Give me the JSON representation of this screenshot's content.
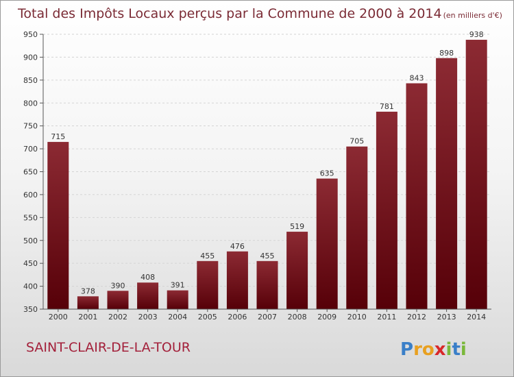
{
  "chart_data": {
    "type": "bar",
    "title": "Total des Impôts Locaux perçus par la Commune de 2000 à 2014",
    "unit": "(en milliers d'€)",
    "categories": [
      "2000",
      "2001",
      "2002",
      "2003",
      "2004",
      "2005",
      "2006",
      "2007",
      "2008",
      "2009",
      "2010",
      "2011",
      "2012",
      "2013",
      "2014"
    ],
    "values": [
      715,
      378,
      390,
      408,
      391,
      455,
      476,
      455,
      519,
      635,
      705,
      781,
      843,
      898,
      938
    ],
    "ylim": [
      350,
      950
    ],
    "yticks": [
      350,
      400,
      450,
      500,
      550,
      600,
      650,
      700,
      750,
      800,
      850,
      900,
      950
    ],
    "xlabel": "",
    "ylabel": "",
    "grid": true,
    "bar_color": "#7a1e26"
  },
  "commune": "SAINT-CLAIR-DE-LA-TOUR",
  "logo": {
    "text": "Proxiti",
    "letters": [
      {
        "ch": "P",
        "color": "#3a7fc8"
      },
      {
        "ch": "r",
        "color": "#e8a020"
      },
      {
        "ch": "o",
        "color": "#e8a020"
      },
      {
        "ch": "x",
        "color": "#d8282a"
      },
      {
        "ch": "i",
        "color": "#7ab83a"
      },
      {
        "ch": "t",
        "color": "#3a7fc8"
      },
      {
        "ch": "i",
        "color": "#7ab83a"
      }
    ]
  }
}
